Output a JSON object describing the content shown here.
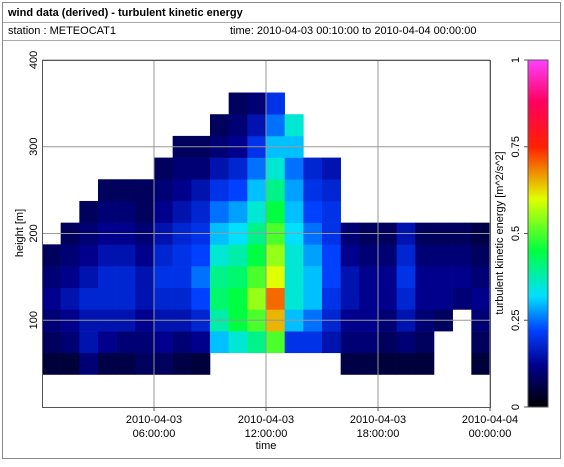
{
  "chart_data": {
    "type": "heatmap",
    "title": "wind data (derived) - turbulent kinetic energy",
    "station": "station : METEOCAT1",
    "time_range": "time: 2010-04-03 00:10:00 to 2010-04-04 00:00:00",
    "x_label": "time",
    "y_label": "height [m]",
    "colorbar_label": "turbulent kinetic energy [m^2/s^2]",
    "xlim": [
      "2010-04-03 00:00:00",
      "2010-04-04 00:00:00"
    ],
    "xticks": [
      "2010-04-03 06:00:00",
      "2010-04-03 12:00:00",
      "2010-04-03 18:00:00",
      "2010-04-04 00:00:00"
    ],
    "ylim": [
      0,
      400
    ],
    "yticks": [
      100,
      200,
      300,
      400
    ],
    "clim": [
      0,
      1
    ],
    "cticks": [
      0,
      0.25,
      0.5,
      0.75,
      1
    ],
    "colormap": [
      [
        0,
        "#000000"
      ],
      [
        0.12,
        "#00008c"
      ],
      [
        0.22,
        "#0040ff"
      ],
      [
        0.32,
        "#00e0ff"
      ],
      [
        0.45,
        "#00ff40"
      ],
      [
        0.6,
        "#e0ff00"
      ],
      [
        0.75,
        "#ff2000"
      ],
      [
        0.88,
        "#ff0060"
      ],
      [
        1,
        "#ff40ff"
      ]
    ],
    "grid": true,
    "x": [
      "2010-04-03 00:00:00",
      "2010-04-03 01:00:00",
      "2010-04-03 02:00:00",
      "2010-04-03 03:00:00",
      "2010-04-03 04:00:00",
      "2010-04-03 05:00:00",
      "2010-04-03 06:00:00",
      "2010-04-03 07:00:00",
      "2010-04-03 08:00:00",
      "2010-04-03 09:00:00",
      "2010-04-03 10:00:00",
      "2010-04-03 11:00:00",
      "2010-04-03 12:00:00",
      "2010-04-03 13:00:00",
      "2010-04-03 14:00:00",
      "2010-04-03 15:00:00",
      "2010-04-03 16:00:00",
      "2010-04-03 17:00:00",
      "2010-04-03 18:00:00",
      "2010-04-03 19:00:00",
      "2010-04-03 20:00:00",
      "2010-04-03 21:00:00",
      "2010-04-03 22:00:00",
      "2010-04-03 23:00:00"
    ],
    "y": [
      50,
      75,
      100,
      125,
      150,
      175,
      200,
      225,
      250,
      275,
      300,
      325,
      350
    ],
    "values": [
      [
        0.05,
        0.08,
        0.1,
        0.12,
        0.1,
        0.08,
        null,
        null,
        null,
        null,
        null,
        null,
        null
      ],
      [
        0.05,
        0.1,
        0.12,
        0.15,
        0.12,
        0.1,
        0.08,
        null,
        null,
        null,
        null,
        null,
        null
      ],
      [
        0.1,
        0.15,
        0.15,
        0.18,
        0.15,
        0.12,
        0.1,
        0.08,
        null,
        null,
        null,
        null,
        null
      ],
      [
        0.06,
        0.12,
        0.15,
        0.18,
        0.18,
        0.15,
        0.12,
        0.1,
        0.08,
        null,
        null,
        null,
        null
      ],
      [
        0.06,
        0.1,
        0.15,
        0.18,
        0.18,
        0.15,
        0.12,
        0.1,
        0.08,
        null,
        null,
        null,
        null
      ],
      [
        0.08,
        0.1,
        0.12,
        0.15,
        0.15,
        0.12,
        0.1,
        0.08,
        0.08,
        null,
        null,
        null,
        null
      ],
      [
        0.08,
        0.12,
        0.15,
        0.18,
        0.2,
        0.18,
        0.15,
        0.12,
        0.1,
        0.08,
        null,
        null,
        null
      ],
      [
        0.06,
        0.1,
        0.15,
        0.18,
        0.2,
        0.2,
        0.18,
        0.15,
        0.12,
        0.1,
        0.08,
        null,
        null
      ],
      [
        0.05,
        0.12,
        0.18,
        0.22,
        0.25,
        0.22,
        0.2,
        0.18,
        0.15,
        0.1,
        0.08,
        null,
        null
      ],
      [
        null,
        0.3,
        0.38,
        0.42,
        0.4,
        0.35,
        0.3,
        0.25,
        0.2,
        0.15,
        0.1,
        0.08,
        null
      ],
      [
        null,
        0.35,
        0.45,
        0.45,
        0.42,
        0.38,
        0.32,
        0.28,
        0.22,
        0.18,
        0.12,
        0.1,
        0.08
      ],
      [
        null,
        0.4,
        0.5,
        0.55,
        0.5,
        0.45,
        0.4,
        0.35,
        0.3,
        0.25,
        0.2,
        0.15,
        0.1
      ],
      [
        null,
        0.5,
        0.65,
        0.7,
        0.6,
        0.55,
        0.5,
        0.45,
        0.4,
        0.35,
        0.3,
        0.25,
        0.2
      ],
      [
        null,
        0.2,
        0.3,
        0.35,
        0.35,
        0.35,
        0.32,
        0.3,
        0.28,
        0.25,
        0.3,
        0.35,
        null
      ],
      [
        null,
        0.2,
        0.25,
        0.3,
        0.3,
        0.28,
        0.25,
        0.22,
        0.2,
        0.18,
        null,
        null,
        null
      ],
      [
        null,
        0.15,
        0.18,
        0.2,
        0.22,
        0.22,
        0.2,
        0.2,
        0.18,
        0.15,
        null,
        null,
        null
      ],
      [
        0.06,
        0.1,
        0.12,
        0.15,
        0.15,
        0.12,
        0.1,
        null,
        null,
        null,
        null,
        null,
        null
      ],
      [
        0.06,
        0.1,
        0.12,
        0.12,
        0.12,
        0.1,
        0.08,
        null,
        null,
        null,
        null,
        null,
        null
      ],
      [
        0.05,
        0.08,
        0.1,
        0.12,
        0.12,
        0.1,
        0.08,
        null,
        null,
        null,
        null,
        null,
        null
      ],
      [
        0.05,
        0.1,
        0.15,
        0.18,
        0.2,
        0.18,
        0.15,
        null,
        null,
        null,
        null,
        null,
        null
      ],
      [
        0.05,
        0.08,
        0.1,
        0.12,
        0.12,
        0.1,
        0.08,
        null,
        null,
        null,
        null,
        null,
        null
      ],
      [
        null,
        null,
        0.08,
        0.12,
        0.12,
        0.1,
        0.08,
        null,
        null,
        null,
        null,
        null,
        null
      ],
      [
        null,
        null,
        null,
        0.1,
        0.12,
        0.1,
        0.08,
        null,
        null,
        null,
        null,
        null,
        null
      ],
      [
        0.05,
        0.08,
        0.1,
        0.12,
        0.1,
        0.08,
        0.06,
        null,
        null,
        null,
        null,
        null,
        null
      ]
    ]
  }
}
